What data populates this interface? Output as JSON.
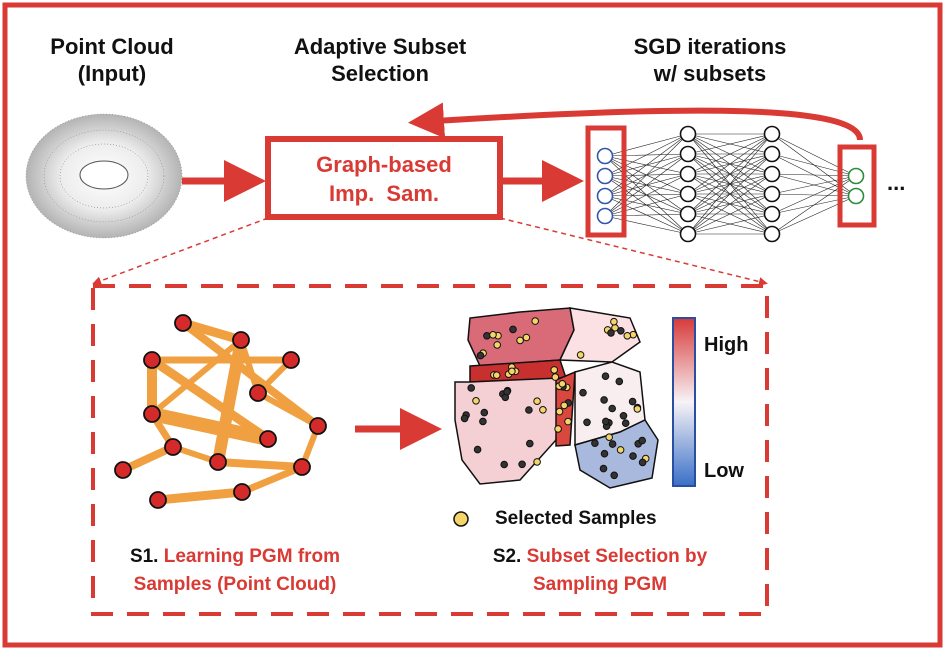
{
  "headers": {
    "input_line1": "Point Cloud",
    "input_line2": "(Input)",
    "adaptive_line1": "Adaptive Subset",
    "adaptive_line2": "Selection",
    "sgd_line1": "SGD iterations",
    "sgd_line2": "w/ subsets"
  },
  "graph_box": {
    "line1": "Graph-based",
    "line2": "Imp.  Sam."
  },
  "ellipsis": "...",
  "legend": {
    "selected_samples": "Selected Samples",
    "high": "High",
    "low": "Low"
  },
  "s1": {
    "prefix": "S1.",
    "line1": "Learning PGM from",
    "line2": "Samples (Point Cloud)"
  },
  "s2": {
    "prefix": "S2.",
    "line1": "Subset Selection by",
    "line2": "Sampling PGM"
  },
  "colors": {
    "accent_red": "#d93a34",
    "edge_orange": "#f0a040",
    "node_red": "#d42a2a",
    "colorbar_high": "#d73a3a",
    "colorbar_low": "#3a6fc7"
  }
}
